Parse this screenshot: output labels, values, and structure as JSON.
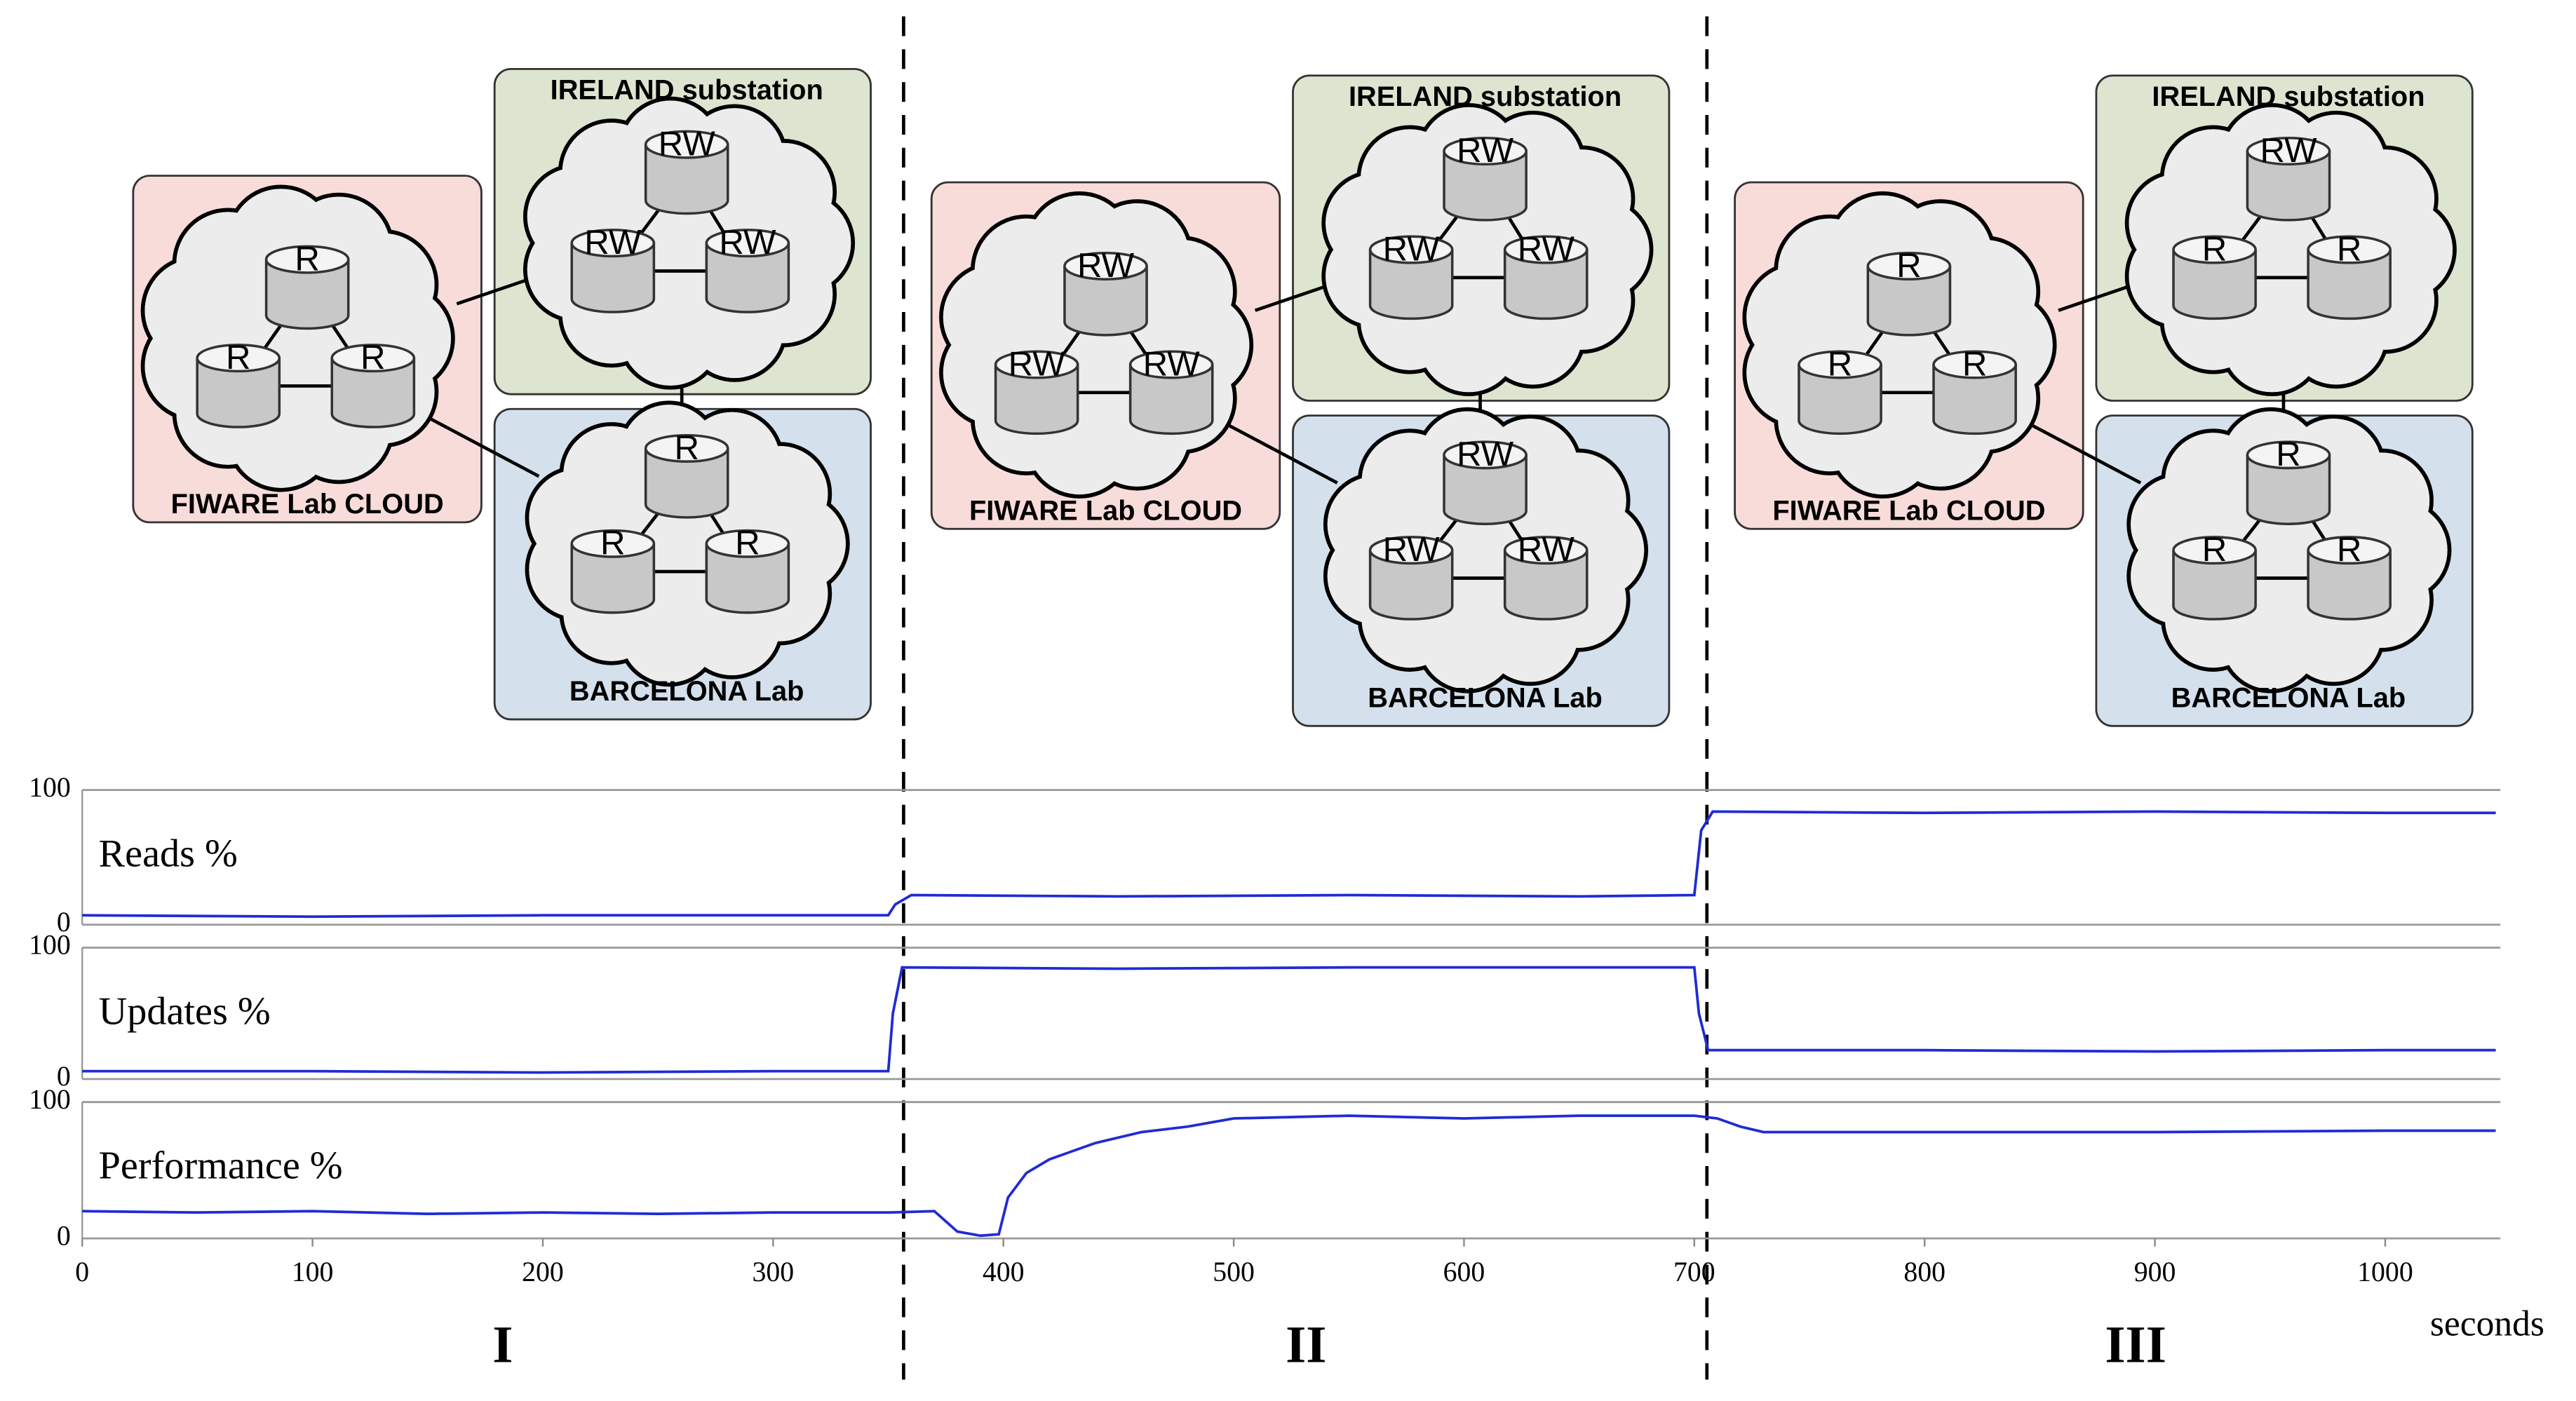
{
  "diagrams": [
    {
      "fiware": {
        "label": "FIWARE Lab CLOUD",
        "nodes": [
          "R",
          "R",
          "R"
        ]
      },
      "ireland": {
        "label": "IRELAND substation",
        "nodes": [
          "RW",
          "RW",
          "RW"
        ]
      },
      "barcelona": {
        "label": "BARCELONA Lab",
        "nodes": [
          "R",
          "R",
          "R"
        ]
      }
    },
    {
      "fiware": {
        "label": "FIWARE Lab CLOUD",
        "nodes": [
          "RW",
          "RW",
          "RW"
        ]
      },
      "ireland": {
        "label": "IRELAND substation",
        "nodes": [
          "RW",
          "RW",
          "RW"
        ]
      },
      "barcelona": {
        "label": "BARCELONA Lab",
        "nodes": [
          "RW",
          "RW",
          "RW"
        ]
      }
    },
    {
      "fiware": {
        "label": "FIWARE Lab CLOUD",
        "nodes": [
          "R",
          "R",
          "R"
        ]
      },
      "ireland": {
        "label": "IRELAND substation",
        "nodes": [
          "RW",
          "R",
          "R"
        ]
      },
      "barcelona": {
        "label": "BARCELONA Lab",
        "nodes": [
          "R",
          "R",
          "R"
        ]
      }
    }
  ],
  "phases": [
    "I",
    "II",
    "III"
  ],
  "chart_data": [
    {
      "type": "line",
      "title": "Reads %",
      "color": "#1f2bd6",
      "xlim": [
        0,
        1050
      ],
      "ylim": [
        0,
        100
      ],
      "yticks": [
        0,
        100
      ],
      "grid": true,
      "x": [
        0,
        100,
        200,
        300,
        350,
        353,
        360,
        450,
        550,
        650,
        700,
        703,
        708,
        800,
        900,
        1000,
        1048
      ],
      "values": [
        7,
        6,
        7,
        7,
        7,
        15,
        22,
        21,
        22,
        21,
        22,
        70,
        84,
        83,
        84,
        83,
        83
      ]
    },
    {
      "type": "line",
      "title": "Updates %",
      "color": "#1f2bd6",
      "xlim": [
        0,
        1050
      ],
      "ylim": [
        0,
        100
      ],
      "yticks": [
        0,
        100
      ],
      "grid": true,
      "x": [
        0,
        100,
        200,
        300,
        350,
        352,
        356,
        450,
        550,
        650,
        700,
        702,
        706,
        800,
        900,
        1000,
        1048
      ],
      "values": [
        6,
        6,
        5,
        6,
        6,
        50,
        85,
        84,
        85,
        85,
        85,
        50,
        22,
        22,
        21,
        22,
        22
      ]
    },
    {
      "type": "line",
      "title": "Performance %",
      "color": "#1f2bd6",
      "xlim": [
        0,
        1050
      ],
      "ylim": [
        0,
        100
      ],
      "yticks": [
        0,
        100
      ],
      "grid": true,
      "x": [
        0,
        50,
        100,
        150,
        200,
        250,
        300,
        350,
        370,
        380,
        390,
        398,
        402,
        410,
        420,
        440,
        460,
        480,
        500,
        550,
        600,
        650,
        700,
        710,
        720,
        730,
        800,
        900,
        1000,
        1048
      ],
      "values": [
        20,
        19,
        20,
        18,
        19,
        18,
        19,
        19,
        20,
        5,
        2,
        3,
        30,
        48,
        58,
        70,
        78,
        82,
        88,
        90,
        88,
        90,
        90,
        88,
        82,
        78,
        78,
        78,
        79,
        79
      ],
      "xticks": [
        0,
        100,
        200,
        300,
        400,
        500,
        600,
        700,
        800,
        900,
        1000
      ],
      "xlabel": "seconds"
    }
  ]
}
